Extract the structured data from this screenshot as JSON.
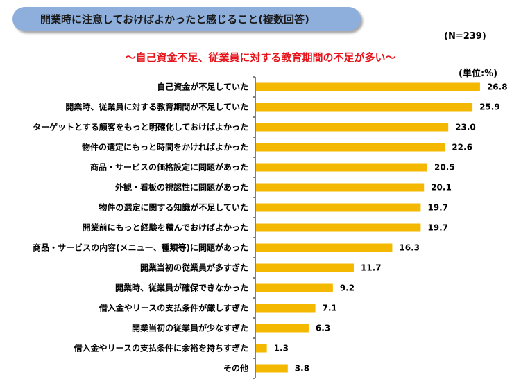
{
  "header": {
    "title": "開業時に注意しておけばよかったと感じること(複数回答)",
    "n_label": "(N=239)",
    "subtitle": "～自己資金不足、従業員に対する教育期間の不足が多い～",
    "unit": "(単位:%)"
  },
  "colors": {
    "bar": "#f5b800",
    "title_bg": "#8eaedc",
    "subtitle_text": "#e8141c"
  },
  "chart_data": {
    "type": "bar",
    "orientation": "horizontal",
    "categories": [
      "自己資金が不足していた",
      "開業時、従業員に対する教育期間が不足していた",
      "ターゲットとする顧客をもっと明確化しておけばよかった",
      "物件の選定にもっと時間をかければよかった",
      "商品・サービスの価格設定に問題があった",
      "外観・看板の視認性に問題があった",
      "物件の選定に関する知識が不足していた",
      "開業前にもっと経験を積んでおけばよかった",
      "商品・サービスの内容(メニュー、種類等)に問題があった",
      "開業当初の従業員が多すぎた",
      "開業時、従業員が確保できなかった",
      "借入金やリースの支払条件が厳しすぎた",
      "開業当初の従業員が少なすぎた",
      "借入金やリースの支払条件に余裕を持ちすぎた",
      "その他"
    ],
    "values": [
      26.8,
      25.9,
      23.0,
      22.6,
      20.5,
      20.1,
      19.7,
      19.7,
      16.3,
      11.7,
      9.2,
      7.1,
      6.3,
      1.3,
      3.8
    ],
    "value_labels": [
      "26.8",
      "25.9",
      "23.0",
      "22.6",
      "20.5",
      "20.1",
      "19.7",
      "19.7",
      "16.3",
      "11.7",
      "9.2",
      "7.1",
      "6.3",
      "1.3",
      "3.8"
    ],
    "xlim": [
      0,
      30
    ],
    "grid": false,
    "legend": "none"
  }
}
